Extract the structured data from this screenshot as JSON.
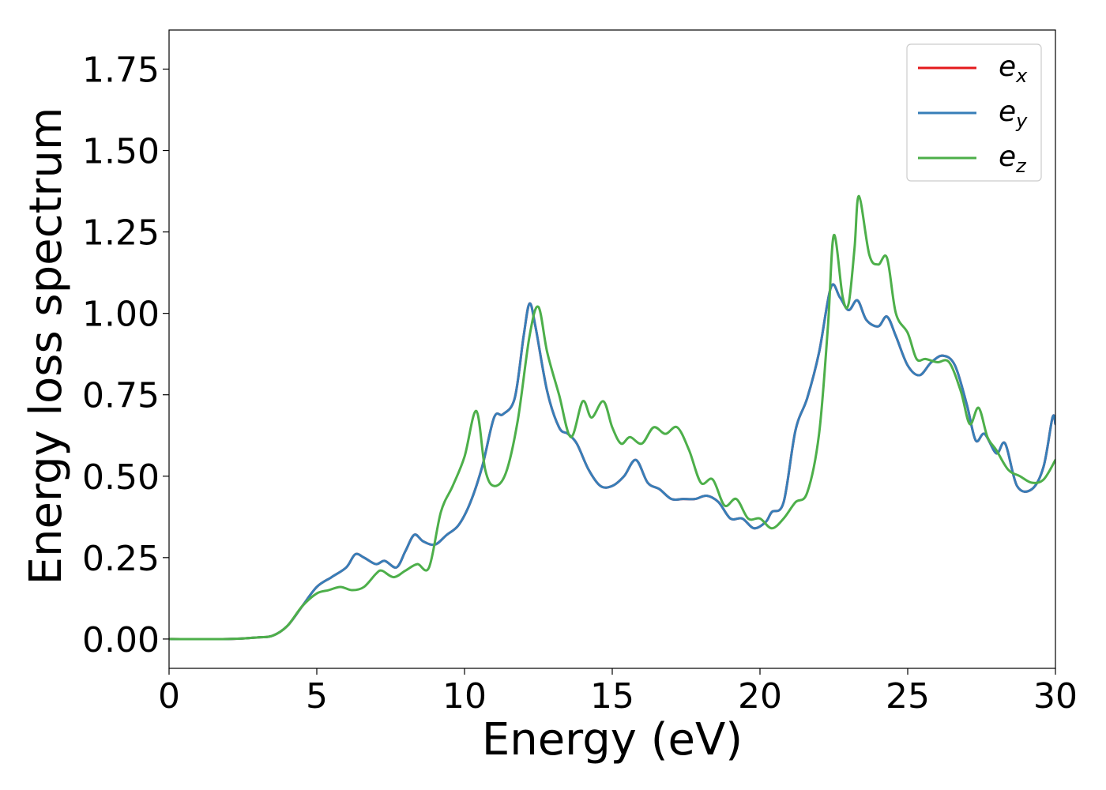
{
  "chart_data": {
    "type": "line",
    "title": "",
    "xlabel": "Energy (eV)",
    "ylabel": "Energy loss spectrum",
    "xlim": [
      0,
      30
    ],
    "ylim": [
      -0.09,
      1.87
    ],
    "xticks": [
      0,
      5,
      10,
      15,
      20,
      25,
      30
    ],
    "xtick_labels": [
      "0",
      "5",
      "10",
      "15",
      "20",
      "25",
      "30"
    ],
    "yticks": [
      0.0,
      0.25,
      0.5,
      0.75,
      1.0,
      1.25,
      1.5,
      1.75
    ],
    "ytick_labels": [
      "0.00",
      "0.25",
      "0.50",
      "0.75",
      "1.00",
      "1.25",
      "1.50",
      "1.75"
    ],
    "grid": false,
    "legend": {
      "placement": "top-right",
      "entries": [
        {
          "base": "e",
          "sub": "x",
          "color": "#e41a1c"
        },
        {
          "base": "e",
          "sub": "y",
          "color": "#377eb8"
        },
        {
          "base": "e",
          "sub": "z",
          "color": "#4daf4a"
        }
      ]
    },
    "series": [
      {
        "name": "e_x",
        "color": "#e41a1c",
        "points": [
          [
            0,
            0.0
          ],
          [
            2,
            0.0
          ],
          [
            3,
            0.005
          ],
          [
            3.5,
            0.01
          ],
          [
            4,
            0.04
          ],
          [
            4.5,
            0.1
          ],
          [
            5,
            0.16
          ],
          [
            5.5,
            0.19
          ],
          [
            6,
            0.22
          ],
          [
            6.3,
            0.26
          ],
          [
            6.6,
            0.25
          ],
          [
            7,
            0.23
          ],
          [
            7.3,
            0.24
          ],
          [
            7.7,
            0.22
          ],
          [
            8,
            0.27
          ],
          [
            8.3,
            0.32
          ],
          [
            8.6,
            0.3
          ],
          [
            9,
            0.29
          ],
          [
            9.4,
            0.32
          ],
          [
            9.8,
            0.35
          ],
          [
            10.2,
            0.42
          ],
          [
            10.6,
            0.53
          ],
          [
            11,
            0.68
          ],
          [
            11.3,
            0.69
          ],
          [
            11.7,
            0.74
          ],
          [
            12,
            0.93
          ],
          [
            12.2,
            1.03
          ],
          [
            12.4,
            0.96
          ],
          [
            12.8,
            0.76
          ],
          [
            13.2,
            0.65
          ],
          [
            13.5,
            0.63
          ],
          [
            13.8,
            0.6
          ],
          [
            14.2,
            0.52
          ],
          [
            14.6,
            0.47
          ],
          [
            15,
            0.47
          ],
          [
            15.4,
            0.5
          ],
          [
            15.8,
            0.55
          ],
          [
            16.2,
            0.48
          ],
          [
            16.6,
            0.46
          ],
          [
            17,
            0.43
          ],
          [
            17.4,
            0.43
          ],
          [
            17.8,
            0.43
          ],
          [
            18.2,
            0.44
          ],
          [
            18.6,
            0.42
          ],
          [
            19,
            0.37
          ],
          [
            19.4,
            0.37
          ],
          [
            19.8,
            0.34
          ],
          [
            20.2,
            0.36
          ],
          [
            20.4,
            0.39
          ],
          [
            20.8,
            0.42
          ],
          [
            21.2,
            0.64
          ],
          [
            21.6,
            0.74
          ],
          [
            22,
            0.88
          ],
          [
            22.4,
            1.08
          ],
          [
            22.7,
            1.05
          ],
          [
            23,
            1.01
          ],
          [
            23.3,
            1.04
          ],
          [
            23.6,
            0.98
          ],
          [
            24,
            0.96
          ],
          [
            24.3,
            0.99
          ],
          [
            24.6,
            0.93
          ],
          [
            25,
            0.84
          ],
          [
            25.4,
            0.81
          ],
          [
            25.8,
            0.85
          ],
          [
            26.2,
            0.87
          ],
          [
            26.6,
            0.84
          ],
          [
            27,
            0.72
          ],
          [
            27.3,
            0.61
          ],
          [
            27.6,
            0.63
          ],
          [
            28,
            0.57
          ],
          [
            28.3,
            0.6
          ],
          [
            28.7,
            0.47
          ],
          [
            29.2,
            0.46
          ],
          [
            29.6,
            0.53
          ],
          [
            29.9,
            0.68
          ],
          [
            30,
            0.66
          ]
        ]
      },
      {
        "name": "e_y",
        "color": "#377eb8",
        "points": [
          [
            0,
            0.0
          ],
          [
            2,
            0.0
          ],
          [
            3,
            0.005
          ],
          [
            3.5,
            0.01
          ],
          [
            4,
            0.04
          ],
          [
            4.5,
            0.1
          ],
          [
            5,
            0.16
          ],
          [
            5.5,
            0.19
          ],
          [
            6,
            0.22
          ],
          [
            6.3,
            0.26
          ],
          [
            6.6,
            0.25
          ],
          [
            7,
            0.23
          ],
          [
            7.3,
            0.24
          ],
          [
            7.7,
            0.22
          ],
          [
            8,
            0.27
          ],
          [
            8.3,
            0.32
          ],
          [
            8.6,
            0.3
          ],
          [
            9,
            0.29
          ],
          [
            9.4,
            0.32
          ],
          [
            9.8,
            0.35
          ],
          [
            10.2,
            0.42
          ],
          [
            10.6,
            0.53
          ],
          [
            11,
            0.68
          ],
          [
            11.3,
            0.69
          ],
          [
            11.7,
            0.74
          ],
          [
            12,
            0.93
          ],
          [
            12.2,
            1.03
          ],
          [
            12.4,
            0.96
          ],
          [
            12.8,
            0.76
          ],
          [
            13.2,
            0.65
          ],
          [
            13.5,
            0.63
          ],
          [
            13.8,
            0.6
          ],
          [
            14.2,
            0.52
          ],
          [
            14.6,
            0.47
          ],
          [
            15,
            0.47
          ],
          [
            15.4,
            0.5
          ],
          [
            15.8,
            0.55
          ],
          [
            16.2,
            0.48
          ],
          [
            16.6,
            0.46
          ],
          [
            17,
            0.43
          ],
          [
            17.4,
            0.43
          ],
          [
            17.8,
            0.43
          ],
          [
            18.2,
            0.44
          ],
          [
            18.6,
            0.42
          ],
          [
            19,
            0.37
          ],
          [
            19.4,
            0.37
          ],
          [
            19.8,
            0.34
          ],
          [
            20.2,
            0.36
          ],
          [
            20.4,
            0.39
          ],
          [
            20.8,
            0.42
          ],
          [
            21.2,
            0.64
          ],
          [
            21.6,
            0.74
          ],
          [
            22,
            0.88
          ],
          [
            22.4,
            1.08
          ],
          [
            22.7,
            1.05
          ],
          [
            23,
            1.01
          ],
          [
            23.3,
            1.04
          ],
          [
            23.6,
            0.98
          ],
          [
            24,
            0.96
          ],
          [
            24.3,
            0.99
          ],
          [
            24.6,
            0.93
          ],
          [
            25,
            0.84
          ],
          [
            25.4,
            0.81
          ],
          [
            25.8,
            0.85
          ],
          [
            26.2,
            0.87
          ],
          [
            26.6,
            0.84
          ],
          [
            27,
            0.72
          ],
          [
            27.3,
            0.61
          ],
          [
            27.6,
            0.63
          ],
          [
            28,
            0.57
          ],
          [
            28.3,
            0.6
          ],
          [
            28.7,
            0.47
          ],
          [
            29.2,
            0.46
          ],
          [
            29.6,
            0.53
          ],
          [
            29.9,
            0.68
          ],
          [
            30,
            0.66
          ]
        ]
      },
      {
        "name": "e_z",
        "color": "#4daf4a",
        "points": [
          [
            0,
            0.0
          ],
          [
            2,
            0.0
          ],
          [
            3,
            0.005
          ],
          [
            3.5,
            0.01
          ],
          [
            4,
            0.04
          ],
          [
            4.5,
            0.1
          ],
          [
            5,
            0.14
          ],
          [
            5.4,
            0.15
          ],
          [
            5.8,
            0.16
          ],
          [
            6.2,
            0.15
          ],
          [
            6.6,
            0.16
          ],
          [
            7,
            0.2
          ],
          [
            7.2,
            0.21
          ],
          [
            7.6,
            0.19
          ],
          [
            8,
            0.21
          ],
          [
            8.4,
            0.23
          ],
          [
            8.8,
            0.22
          ],
          [
            9.2,
            0.39
          ],
          [
            9.6,
            0.47
          ],
          [
            10,
            0.56
          ],
          [
            10.4,
            0.7
          ],
          [
            10.7,
            0.52
          ],
          [
            11,
            0.47
          ],
          [
            11.4,
            0.51
          ],
          [
            11.8,
            0.67
          ],
          [
            12.2,
            0.93
          ],
          [
            12.5,
            1.02
          ],
          [
            12.8,
            0.88
          ],
          [
            13.2,
            0.75
          ],
          [
            13.6,
            0.62
          ],
          [
            14,
            0.73
          ],
          [
            14.3,
            0.68
          ],
          [
            14.7,
            0.73
          ],
          [
            15,
            0.65
          ],
          [
            15.3,
            0.6
          ],
          [
            15.6,
            0.62
          ],
          [
            16,
            0.6
          ],
          [
            16.4,
            0.65
          ],
          [
            16.8,
            0.63
          ],
          [
            17.2,
            0.65
          ],
          [
            17.6,
            0.58
          ],
          [
            18,
            0.48
          ],
          [
            18.4,
            0.49
          ],
          [
            18.8,
            0.41
          ],
          [
            19.2,
            0.43
          ],
          [
            19.6,
            0.37
          ],
          [
            20,
            0.37
          ],
          [
            20.4,
            0.34
          ],
          [
            20.8,
            0.37
          ],
          [
            21.2,
            0.42
          ],
          [
            21.6,
            0.45
          ],
          [
            22,
            0.63
          ],
          [
            22.3,
            0.96
          ],
          [
            22.5,
            1.24
          ],
          [
            22.8,
            1.05
          ],
          [
            23,
            1.03
          ],
          [
            23.2,
            1.2
          ],
          [
            23.35,
            1.36
          ],
          [
            23.7,
            1.18
          ],
          [
            24,
            1.15
          ],
          [
            24.3,
            1.17
          ],
          [
            24.6,
            1.0
          ],
          [
            25,
            0.94
          ],
          [
            25.3,
            0.86
          ],
          [
            25.6,
            0.86
          ],
          [
            26,
            0.85
          ],
          [
            26.4,
            0.85
          ],
          [
            26.8,
            0.76
          ],
          [
            27.1,
            0.66
          ],
          [
            27.4,
            0.71
          ],
          [
            27.7,
            0.62
          ],
          [
            28,
            0.58
          ],
          [
            28.4,
            0.52
          ],
          [
            28.8,
            0.5
          ],
          [
            29.2,
            0.48
          ],
          [
            29.6,
            0.49
          ],
          [
            30,
            0.55
          ]
        ]
      }
    ]
  }
}
